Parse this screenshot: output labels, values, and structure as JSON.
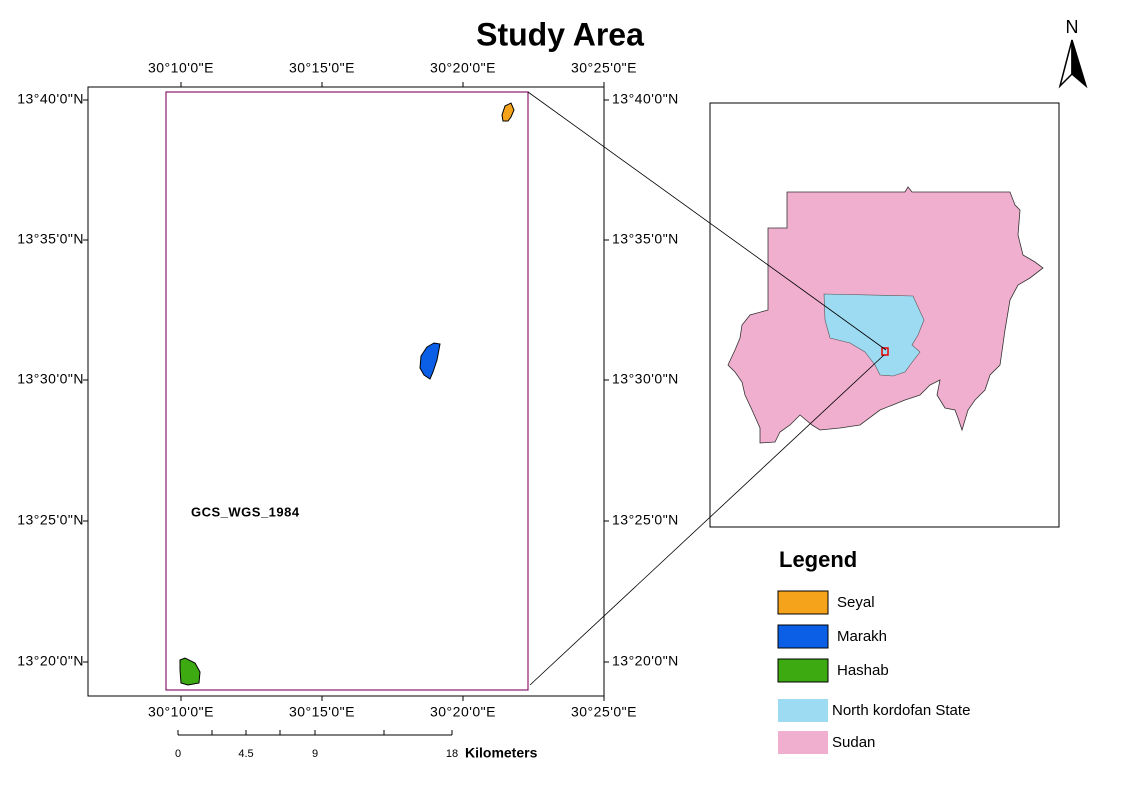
{
  "title": "Study Area",
  "north_label": "N",
  "main_map": {
    "top_labels": [
      "30°10'0\"E",
      "30°15'0\"E",
      "30°20'0\"E",
      "30°25'0\"E"
    ],
    "bottom_labels": [
      "30°10'0\"E",
      "30°15'0\"E",
      "30°20'0\"E",
      "30°25'0\"E"
    ],
    "left_labels": [
      "13°40'0\"N",
      "13°35'0\"N",
      "13°30'0\"N",
      "13°25'0\"N",
      "13°20'0\"N"
    ],
    "right_labels": [
      "13°40'0\"N",
      "13°35'0\"N",
      "13°30'0\"N",
      "13°25'0\"N",
      "13°20'0\"N"
    ],
    "crs_label": "GCS_WGS_1984"
  },
  "scale_bar": {
    "labels": [
      "0",
      "4.5",
      "9",
      "18"
    ],
    "unit": "Kilometers"
  },
  "legend": {
    "title": "Legend",
    "items": [
      {
        "label": "Seyal",
        "color": "#f5a31a"
      },
      {
        "label": "Marakh",
        "color": "#0a5fe6"
      },
      {
        "label": "Hashab",
        "color": "#3daa12"
      },
      {
        "label": "North kordofan State",
        "color": "#9ddbf2"
      },
      {
        "label": "Sudan",
        "color": "#f0afcf"
      }
    ]
  }
}
